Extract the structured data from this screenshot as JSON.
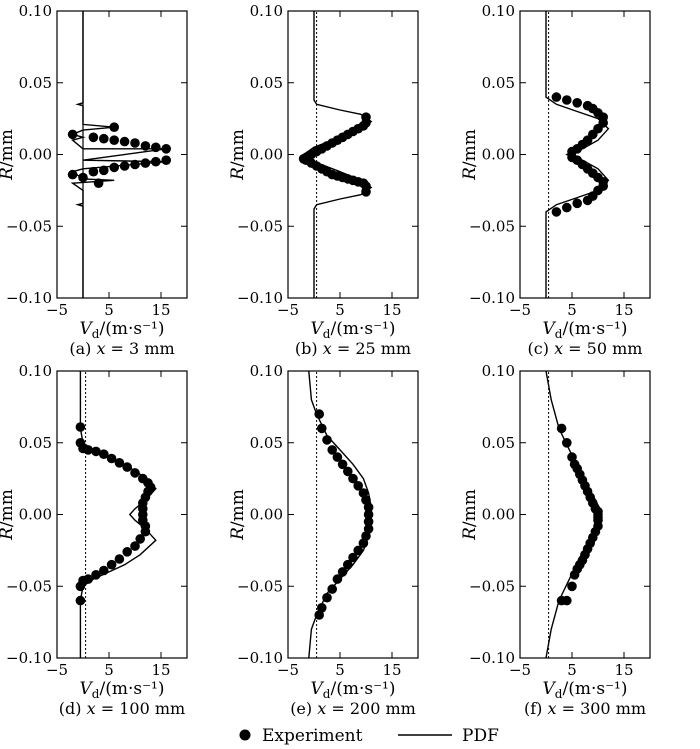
{
  "figure": {
    "legend": {
      "experiment_label": "Experiment",
      "pdf_label": "PDF"
    }
  },
  "chart_data": [
    {
      "type": "scatter",
      "caption": "(a) x = 3 mm",
      "caption_prefix": "(a) ",
      "caption_var": "x",
      "caption_value": " = 3 mm",
      "xlabel": "Vd/(m·s⁻¹)",
      "ylabel": "R/mm",
      "xlim": [
        -5,
        20
      ],
      "ylim": [
        -0.1,
        0.1
      ],
      "xticks": [
        -5,
        5,
        15
      ],
      "yticks": [
        0.1,
        0.05,
        0.0,
        -0.05,
        -0.1
      ],
      "xtick_labels": [
        "−5",
        "5",
        "15"
      ],
      "ytick_labels": [
        "0.10",
        "0.05",
        "0.00",
        "−0.05",
        "−0.10"
      ],
      "reference_x": 0,
      "series": [
        {
          "name": "Experiment",
          "kind": "markers",
          "x": [
            6,
            -2,
            2,
            4,
            6,
            8,
            10,
            12,
            14,
            16,
            16,
            14,
            12,
            10,
            8,
            6,
            4,
            2,
            -2,
            0,
            3
          ],
          "y": [
            0.019,
            0.014,
            0.012,
            0.011,
            0.01,
            0.009,
            0.008,
            0.006,
            0.005,
            0.004,
            -0.004,
            -0.005,
            -0.006,
            -0.007,
            -0.008,
            -0.009,
            -0.011,
            -0.012,
            -0.014,
            -0.016,
            -0.02
          ]
        },
        {
          "name": "PDF",
          "kind": "line",
          "x": [
            0,
            0,
            0,
            -1,
            0,
            0,
            -2,
            6,
            0,
            -2,
            0,
            16,
            0,
            16,
            0,
            -2,
            0,
            -2,
            0,
            6,
            0,
            0,
            -1,
            0,
            0,
            0
          ],
          "y": [
            -0.1,
            -0.04,
            -0.036,
            -0.035,
            -0.034,
            -0.025,
            -0.02,
            -0.018,
            -0.017,
            -0.012,
            -0.01,
            -0.005,
            -0.004,
            0.004,
            0.004,
            0.01,
            0.012,
            0.014,
            0.017,
            0.019,
            0.021,
            0.034,
            0.035,
            0.036,
            0.04,
            0.1
          ]
        }
      ]
    },
    {
      "type": "scatter",
      "caption": "(b) x = 25 mm",
      "caption_prefix": "(b) ",
      "caption_var": "x",
      "caption_value": " = 25 mm",
      "xlabel": "Vd/(m·s⁻¹)",
      "ylabel": "R/mm",
      "xlim": [
        -5,
        20
      ],
      "ylim": [
        -0.1,
        0.1
      ],
      "xticks": [
        -5,
        5,
        15
      ],
      "yticks": [
        0.1,
        0.05,
        0.0,
        -0.05,
        -0.1
      ],
      "xtick_labels": [
        "−5",
        "5",
        "15"
      ],
      "ytick_labels": [
        "0.10",
        "0.05",
        "0.00",
        "−0.05",
        "−0.10"
      ],
      "reference_x": 0,
      "series": [
        {
          "name": "Experiment",
          "kind": "markers",
          "x": [
            10,
            10,
            9.5,
            8.5,
            7.5,
            6.5,
            5.5,
            4.5,
            3.5,
            2.5,
            1.5,
            0.5,
            -0.5,
            -1.5,
            -2,
            -1.5,
            -0.5,
            0.5,
            1.5,
            2.5,
            3.5,
            4.5,
            5.5,
            6.5,
            7.5,
            8.5,
            9.5,
            10,
            10
          ],
          "y": [
            0.026,
            0.022,
            0.02,
            0.018,
            0.016,
            0.014,
            0.012,
            0.01,
            0.008,
            0.006,
            0.004,
            0.002,
            0.0,
            -0.002,
            -0.003,
            -0.004,
            -0.006,
            -0.008,
            -0.01,
            -0.012,
            -0.014,
            -0.015,
            -0.016,
            -0.017,
            -0.018,
            -0.019,
            -0.02,
            -0.022,
            -0.026
          ]
        },
        {
          "name": "PDF",
          "kind": "line",
          "x": [
            0,
            0,
            0.5,
            5,
            9,
            11,
            9,
            5,
            0,
            -2,
            0,
            5,
            9,
            11,
            9,
            5,
            0.5,
            0,
            0
          ],
          "y": [
            -0.1,
            -0.038,
            -0.035,
            -0.031,
            -0.028,
            -0.023,
            -0.018,
            -0.012,
            -0.005,
            0.0,
            0.005,
            0.012,
            0.018,
            0.023,
            0.028,
            0.031,
            0.035,
            0.038,
            0.1
          ]
        },
        {
          "name": "PDF-dotted",
          "kind": "dotted",
          "x": [
            0.5,
            0.5
          ],
          "y": [
            -0.1,
            0.1
          ]
        }
      ]
    },
    {
      "type": "scatter",
      "caption": "(c) x = 50 mm",
      "caption_prefix": "(c) ",
      "caption_var": "x",
      "caption_value": " = 50 mm",
      "xlabel": "Vd/(m·s⁻¹)",
      "ylabel": "R/mm",
      "xlim": [
        -5,
        20
      ],
      "ylim": [
        -0.1,
        0.1
      ],
      "xticks": [
        -5,
        5,
        15
      ],
      "yticks": [
        0.1,
        0.05,
        0.0,
        -0.05,
        -0.1
      ],
      "xtick_labels": [
        "−5",
        "5",
        "15"
      ],
      "ytick_labels": [
        "0.10",
        "0.05",
        "0.00",
        "−0.05",
        "−0.10"
      ],
      "reference_x": 0,
      "series": [
        {
          "name": "Experiment",
          "kind": "markers",
          "x": [
            2,
            4,
            6,
            8,
            9,
            10,
            11,
            11,
            10,
            9,
            8,
            7,
            6,
            5,
            5,
            6,
            7,
            8,
            9,
            10,
            11,
            11,
            10,
            9,
            8,
            6,
            4,
            2
          ],
          "y": [
            0.04,
            0.038,
            0.036,
            0.034,
            0.032,
            0.029,
            0.026,
            0.022,
            0.018,
            0.014,
            0.01,
            0.007,
            0.004,
            0.002,
            -0.002,
            -0.004,
            -0.007,
            -0.01,
            -0.013,
            -0.016,
            -0.019,
            -0.022,
            -0.025,
            -0.029,
            -0.032,
            -0.034,
            -0.037,
            -0.04
          ]
        },
        {
          "name": "PDF",
          "kind": "line",
          "x": [
            0,
            0,
            2,
            6,
            10,
            12,
            10,
            7,
            5,
            4,
            5,
            7,
            10,
            12,
            10,
            6,
            2,
            0,
            0
          ],
          "y": [
            -0.1,
            -0.04,
            -0.035,
            -0.03,
            -0.025,
            -0.018,
            -0.01,
            -0.004,
            -0.002,
            0.0,
            0.002,
            0.004,
            0.01,
            0.018,
            0.025,
            0.03,
            0.035,
            0.04,
            0.1
          ]
        },
        {
          "name": "PDF-dotted",
          "kind": "dotted",
          "x": [
            0.5,
            0.5
          ],
          "y": [
            -0.1,
            0.1
          ]
        }
      ]
    },
    {
      "type": "scatter",
      "caption": "(d) x = 100 mm",
      "caption_prefix": "(d) ",
      "caption_var": "x",
      "caption_value": " = 100 mm",
      "xlabel": "Vd/(m·s⁻¹)",
      "ylabel": "R/mm",
      "xlim": [
        -5,
        20
      ],
      "ylim": [
        -0.1,
        0.1
      ],
      "xticks": [
        -5,
        5,
        15
      ],
      "yticks": [
        0.1,
        0.05,
        0.0,
        -0.05,
        -0.1
      ],
      "xtick_labels": [
        "−5",
        "5",
        "15"
      ],
      "ytick_labels": [
        "0.10",
        "0.05",
        "0.00",
        "−0.05",
        "−0.10"
      ],
      "reference_x": 0,
      "series": [
        {
          "name": "Experiment",
          "kind": "markers",
          "x": [
            -0.5,
            -0.5,
            0,
            1,
            2.5,
            4,
            5.5,
            7,
            8.5,
            10,
            11.5,
            12.5,
            13,
            12.5,
            12,
            11.5,
            11.5,
            11.5,
            11.5,
            12,
            12,
            11,
            10,
            8.5,
            7,
            5.5,
            4,
            2.5,
            1,
            0,
            -0.5,
            -0.5
          ],
          "y": [
            0.061,
            0.05,
            0.046,
            0.045,
            0.044,
            0.042,
            0.039,
            0.036,
            0.033,
            0.029,
            0.025,
            0.022,
            0.019,
            0.016,
            0.012,
            0.008,
            0.004,
            0.0,
            -0.004,
            -0.008,
            -0.012,
            -0.017,
            -0.022,
            -0.026,
            -0.031,
            -0.035,
            -0.039,
            -0.042,
            -0.045,
            -0.046,
            -0.05,
            -0.06
          ]
        },
        {
          "name": "PDF",
          "kind": "line",
          "x": [
            -0.5,
            -0.5,
            0,
            2,
            5,
            8,
            11,
            14,
            12,
            10,
            9,
            10,
            12,
            14,
            11,
            8,
            5,
            2,
            0,
            -0.5,
            -0.5
          ],
          "y": [
            -0.1,
            -0.06,
            -0.05,
            -0.045,
            -0.04,
            -0.035,
            -0.028,
            -0.018,
            -0.01,
            -0.004,
            0.0,
            0.004,
            0.01,
            0.018,
            0.028,
            0.035,
            0.04,
            0.045,
            0.05,
            0.06,
            0.1
          ]
        },
        {
          "name": "PDF-dotted",
          "kind": "dotted",
          "x": [
            0.5,
            0.5
          ],
          "y": [
            -0.1,
            0.1
          ]
        }
      ]
    },
    {
      "type": "scatter",
      "caption": "(e) x = 200 mm",
      "caption_prefix": "(e) ",
      "caption_var": "x",
      "caption_value": " = 200 mm",
      "xlabel": "Vd/(m·s⁻¹)",
      "ylabel": "R/mm",
      "xlim": [
        -5,
        20
      ],
      "ylim": [
        -0.1,
        0.1
      ],
      "xticks": [
        -5,
        5,
        15
      ],
      "yticks": [
        0.1,
        0.05,
        0.0,
        -0.05,
        -0.1
      ],
      "xtick_labels": [
        "−5",
        "5",
        "15"
      ],
      "ytick_labels": [
        "0.10",
        "0.05",
        "0.00",
        "−0.05",
        "−0.10"
      ],
      "reference_x": 0,
      "series": [
        {
          "name": "Experiment",
          "kind": "markers",
          "x": [
            1,
            1.5,
            2.5,
            3.5,
            4.5,
            5.5,
            6.5,
            7.5,
            8.5,
            9.5,
            10,
            10.5,
            10.5,
            10.5,
            10.5,
            10,
            9.5,
            8.5,
            7.5,
            6.5,
            5.5,
            4.5,
            3.5,
            2.5,
            1.5,
            1
          ],
          "y": [
            0.07,
            0.06,
            0.052,
            0.045,
            0.04,
            0.035,
            0.03,
            0.025,
            0.02,
            0.015,
            0.01,
            0.005,
            0.0,
            -0.005,
            -0.01,
            -0.015,
            -0.02,
            -0.025,
            -0.03,
            -0.035,
            -0.04,
            -0.045,
            -0.052,
            -0.058,
            -0.065,
            -0.07
          ]
        },
        {
          "name": "PDF",
          "kind": "line",
          "x": [
            -1,
            -0.5,
            0.5,
            2.5,
            5,
            7.5,
            9.5,
            10.5,
            11,
            11,
            10.5,
            9.5,
            7.5,
            5,
            2.5,
            0.5,
            -0.5,
            -1
          ],
          "y": [
            -0.1,
            -0.08,
            -0.07,
            -0.055,
            -0.045,
            -0.035,
            -0.025,
            -0.015,
            -0.005,
            0.005,
            0.015,
            0.025,
            0.035,
            0.045,
            0.055,
            0.07,
            0.08,
            0.1
          ]
        },
        {
          "name": "PDF-dotted",
          "kind": "dotted",
          "x": [
            0.5,
            0.5
          ],
          "y": [
            -0.1,
            0.1
          ]
        }
      ]
    },
    {
      "type": "scatter",
      "caption": "(f) x = 300 mm",
      "caption_prefix": "(f) ",
      "caption_var": "x",
      "caption_value": " = 300 mm",
      "xlabel": "Vd/(m·s⁻¹)",
      "ylabel": "R/mm",
      "xlim": [
        -5,
        20
      ],
      "ylim": [
        -0.1,
        0.1
      ],
      "xticks": [
        -5,
        5,
        15
      ],
      "yticks": [
        0.1,
        0.05,
        0.0,
        -0.05,
        -0.1
      ],
      "xtick_labels": [
        "−5",
        "5",
        "15"
      ],
      "ytick_labels": [
        "0.10",
        "0.05",
        "0.00",
        "−0.05",
        "−0.10"
      ],
      "reference_x": 0,
      "series": [
        {
          "name": "Experiment",
          "kind": "markers",
          "x": [
            3,
            4,
            5,
            5.5,
            6,
            6.5,
            7,
            7.5,
            8,
            8.5,
            9,
            9.5,
            10,
            10,
            10,
            10,
            10,
            9.5,
            9,
            8.5,
            8,
            7.5,
            7,
            6.5,
            6,
            5.5,
            5,
            4,
            3
          ],
          "y": [
            0.06,
            0.05,
            0.04,
            0.035,
            0.032,
            0.028,
            0.024,
            0.02,
            0.016,
            0.012,
            0.008,
            0.004,
            0.002,
            0.0,
            -0.002,
            -0.004,
            -0.008,
            -0.012,
            -0.016,
            -0.02,
            -0.024,
            -0.028,
            -0.032,
            -0.035,
            -0.038,
            -0.042,
            -0.05,
            -0.06,
            -0.06
          ]
        },
        {
          "name": "PDF",
          "kind": "line",
          "x": [
            0,
            1,
            2.5,
            4.5,
            6.5,
            8,
            9.5,
            10.5,
            10.5,
            9.5,
            8,
            6.5,
            4.5,
            2.5,
            1,
            0
          ],
          "y": [
            -0.1,
            -0.08,
            -0.06,
            -0.045,
            -0.03,
            -0.02,
            -0.01,
            -0.003,
            0.003,
            0.01,
            0.02,
            0.03,
            0.045,
            0.06,
            0.08,
            0.1
          ]
        },
        {
          "name": "PDF-dotted",
          "kind": "dotted",
          "x": [
            0.5,
            0.5
          ],
          "y": [
            -0.1,
            0.1
          ]
        }
      ]
    }
  ]
}
